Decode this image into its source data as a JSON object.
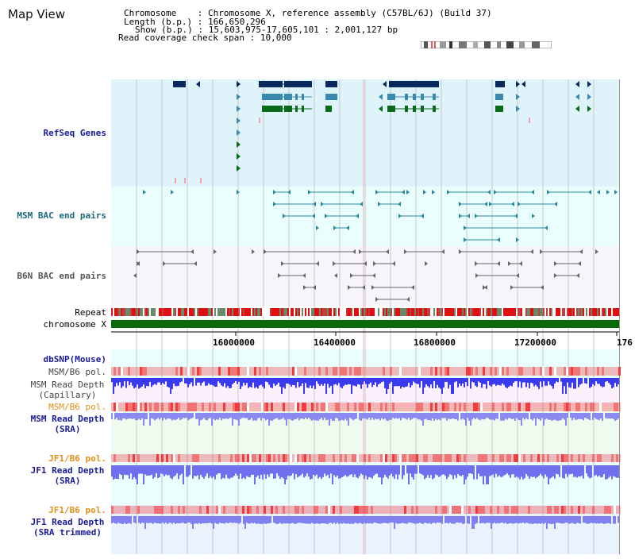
{
  "app": {
    "title": "Map View"
  },
  "header": {
    "chromosome_label": "Chromosome",
    "chromosome_value": "Chromosome X, reference assembly (C57BL/6J) (Build 37)",
    "length_label": "Length (b.p.)",
    "length_value": "166,650,296",
    "show_label": "Show (b.p.)",
    "show_value": "15,603,975-17,605,101 : 2,001,127 bp",
    "coverage_label": "Read coverage check span",
    "coverage_value": "10,000"
  },
  "tracks": {
    "refseq": "RefSeq Genes",
    "msm_bac": "MSM BAC end pairs",
    "b6n_bac": "B6N BAC end pairs",
    "repeat": "Repeat",
    "chromosome": "chromosome X",
    "dbsnp": "dbSNP(Mouse)",
    "msm_b6_pol_1": "MSM/B6 pol.",
    "msm_depth_cap_1": "MSM Read Depth",
    "msm_depth_cap_2": "(Capillary)",
    "msm_b6_pol_2": "MSM/B6 pol.",
    "msm_depth_sra_1": "MSM Read Depth",
    "msm_depth_sra_2": "(SRA)",
    "jf1_b6_pol_1": "JF1/B6 pol.",
    "jf1_depth_sra_1": "JF1 Read Depth",
    "jf1_depth_sra_2": "(SRA)",
    "jf1_b6_pol_2": "JF1/B6 pol.",
    "jf1_depth_trim_1": "JF1 Read Depth",
    "jf1_depth_trim_2": "(SRA trimmed)"
  },
  "axis": {
    "ticks": [
      "16000000",
      "16400000",
      "16800000",
      "17200000",
      "176"
    ]
  },
  "colors": {
    "refseq_bg": "#dff3fb",
    "bac_bg": "#eafefe",
    "b6n_bg": "#f6f6fa",
    "navy": "#0a2a5e",
    "teal": "#2a7a9a",
    "green": "#0a6a1a",
    "label_navy": "#1a1a9a",
    "label_teal": "#1a6a7a",
    "label_grey": "#444444",
    "label_orange": "#e0901a",
    "depth_blue": "#3a3aee",
    "sra_blue": "#8a8af0",
    "pol_red": "#f05050"
  }
}
